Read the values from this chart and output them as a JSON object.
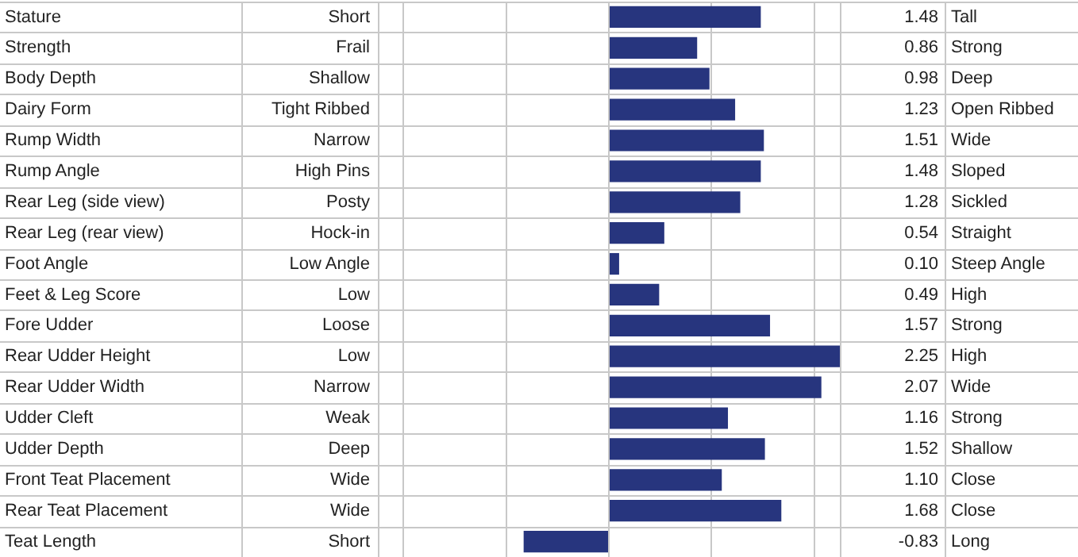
{
  "chart_data": {
    "type": "bar",
    "orientation": "horizontal",
    "categories": [
      "Stature",
      "Strength",
      "Body Depth",
      "Dairy Form",
      "Rump Width",
      "Rump Angle",
      "Rear Leg (side view)",
      "Rear Leg (rear view)",
      "Foot Angle",
      "Feet & Leg Score",
      "Fore Udder",
      "Rear Udder Height",
      "Rear Udder Width",
      "Udder Cleft",
      "Udder Depth",
      "Front Teat Placement",
      "Rear Teat Placement",
      "Teat Length"
    ],
    "values": [
      1.48,
      0.86,
      0.98,
      1.23,
      1.51,
      1.48,
      1.28,
      0.54,
      0.1,
      0.49,
      1.57,
      2.25,
      2.07,
      1.16,
      1.52,
      1.1,
      1.68,
      -0.83
    ],
    "value_labels": [
      "1.48",
      "0.86",
      "0.98",
      "1.23",
      "1.51",
      "1.48",
      "1.28",
      "0.54",
      "0.10",
      "0.49",
      "1.57",
      "2.25",
      "2.07",
      "1.16",
      "1.52",
      "1.10",
      "1.68",
      "-0.83"
    ],
    "color": "#27357e",
    "xlim": [
      -2.25,
      2.25
    ],
    "xticks": [
      {
        "value": -2,
        "label": null
      },
      {
        "value": -1,
        "label": null
      },
      {
        "value": 0,
        "label": null
      },
      {
        "value": 1,
        "label": null
      },
      {
        "value": 2,
        "label": null
      }
    ],
    "grid": "x",
    "legend": false,
    "annotations": [
      "Short",
      "Tall",
      "Frail",
      "Strong",
      "Shallow",
      "Deep",
      "Tight Ribbed",
      "Open Ribbed",
      "Narrow",
      "Wide",
      "High Pins",
      "Sloped",
      "Posty",
      "Sickled",
      "Hock-in",
      "Straight",
      "Low Angle",
      "Steep Angle",
      "Low",
      "High",
      "Loose",
      "Strong",
      "Low",
      "High",
      "Narrow",
      "Wide",
      "Weak",
      "Strong",
      "Deep",
      "Shallow",
      "Wide",
      "Close",
      "Wide",
      "Close",
      "Short",
      "Long"
    ]
  }
}
